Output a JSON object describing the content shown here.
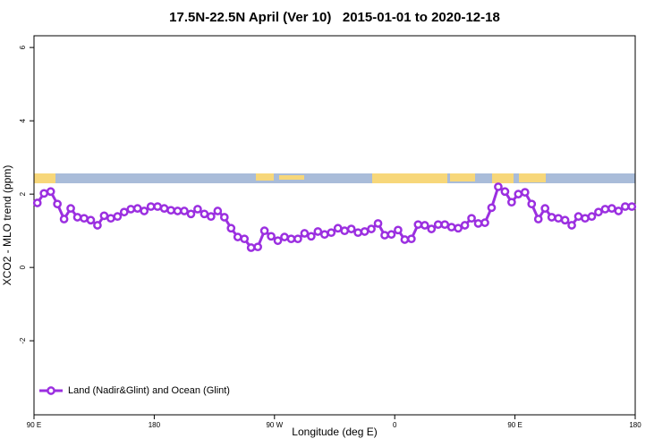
{
  "chart_data": {
    "type": "line",
    "title": "17.5N-22.5N April (Ver 10)   2015-01-01 to 2020-12-18",
    "xlabel": "Longitude (deg E)",
    "ylabel": "XCO2 - MLO trend (ppm)",
    "xlim": [
      90,
      540
    ],
    "xticks": [
      {
        "value": 90,
        "label": "90 E"
      },
      180,
      {
        "value": 270,
        "label": "90 W"
      },
      {
        "value": 360,
        "label": "0"
      },
      {
        "value": 450,
        "label": "90 E"
      },
      {
        "value": 540,
        "label": "180"
      }
    ],
    "ylim": [
      -4.02,
      6.32
    ],
    "yticks": [
      -2,
      0,
      2,
      4,
      6
    ],
    "legend": "bottom-left",
    "x": [
      92.5,
      97.5,
      102.5,
      107.5,
      112.5,
      117.5,
      122.5,
      127.5,
      132.5,
      137.5,
      142.5,
      147.5,
      152.5,
      157.5,
      162.5,
      167.5,
      172.5,
      177.5,
      182.5,
      187.5,
      192.5,
      197.5,
      202.5,
      207.5,
      212.5,
      217.5,
      222.5,
      227.5,
      232.5,
      237.5,
      242.5,
      247.5,
      252.5,
      257.5,
      262.5,
      267.5,
      272.5,
      277.5,
      282.5,
      287.5,
      292.5,
      297.5,
      302.5,
      307.5,
      312.5,
      317.5,
      322.5,
      327.5,
      332.5,
      337.5,
      342.5,
      347.5,
      352.5,
      357.5,
      362.5,
      367.5,
      372.5,
      377.5,
      382.5,
      387.5,
      392.5,
      397.5,
      402.5,
      407.5,
      412.5,
      417.5,
      422.5,
      427.5,
      432.5,
      437.5,
      442.5,
      447.5,
      452.5,
      457.5,
      462.5,
      467.5,
      472.5,
      477.5,
      482.5,
      487.5,
      492.5,
      497.5,
      502.5,
      507.5,
      512.5,
      517.5,
      522.5,
      527.5,
      532.5,
      537.5
    ],
    "series": [
      {
        "name": "Land (Nadir&Glint) and Ocean (Glint)",
        "color": "#9b2fe0",
        "values": [
          1.76,
          2.02,
          2.07,
          1.73,
          1.32,
          1.61,
          1.37,
          1.34,
          1.29,
          1.15,
          1.41,
          1.34,
          1.39,
          1.51,
          1.59,
          1.61,
          1.54,
          1.66,
          1.66,
          1.61,
          1.56,
          1.54,
          1.54,
          1.46,
          1.59,
          1.46,
          1.39,
          1.54,
          1.37,
          1.07,
          0.83,
          0.78,
          0.54,
          0.56,
          1.0,
          0.85,
          0.73,
          0.83,
          0.78,
          0.78,
          0.93,
          0.85,
          0.98,
          0.9,
          0.95,
          1.07,
          1.0,
          1.05,
          0.95,
          0.98,
          1.05,
          1.2,
          0.88,
          0.9,
          1.02,
          0.76,
          0.78,
          1.17,
          1.15,
          1.05,
          1.17,
          1.17,
          1.1,
          1.07,
          1.15,
          1.34,
          1.2,
          1.22,
          1.63,
          2.2,
          2.07,
          1.78,
          2.0,
          2.05,
          1.73,
          1.32,
          1.61,
          1.37,
          1.34,
          1.29,
          1.15,
          1.39,
          1.34,
          1.39,
          1.51,
          1.59,
          1.61,
          1.54,
          1.66,
          1.66
        ]
      }
    ]
  }
}
